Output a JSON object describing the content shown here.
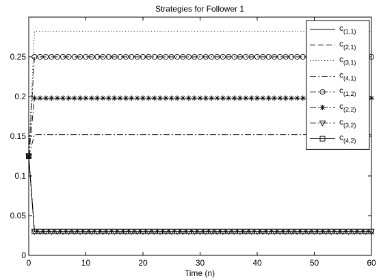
{
  "chart_data": {
    "type": "line",
    "title": "Strategies for Follower 1",
    "xlabel": "Time (n)",
    "ylabel": "",
    "xlim": [
      0,
      60
    ],
    "ylim": [
      0,
      0.3
    ],
    "xticks": [
      "0",
      "10",
      "20",
      "30",
      "40",
      "50",
      "60"
    ],
    "yticks": [
      "0",
      "0.05",
      "0.1",
      "0.15",
      "0.2",
      "0.25"
    ],
    "grid": false,
    "legend_position": "top-right",
    "series": [
      {
        "name": "c(1,1)",
        "base": "c",
        "sub": "(1,1)",
        "line": "solid",
        "marker": "none",
        "x": [
          0,
          1,
          60
        ],
        "y": [
          0.125,
          0.03,
          0.03
        ]
      },
      {
        "name": "c(2,1)",
        "base": "c",
        "sub": "(2,1)",
        "line": "dashed",
        "marker": "none",
        "x": [
          0,
          1,
          60
        ],
        "y": [
          0.125,
          0.03,
          0.03
        ]
      },
      {
        "name": "c(3,1)",
        "base": "c",
        "sub": "(3,1)",
        "line": "dotted",
        "marker": "none",
        "x": [
          0,
          1,
          60
        ],
        "y": [
          0.125,
          0.282,
          0.282
        ]
      },
      {
        "name": "c(4,1)",
        "base": "c",
        "sub": "(4,1)",
        "line": "dashdot",
        "marker": "none",
        "x": [
          0,
          1,
          60
        ],
        "y": [
          0.125,
          0.152,
          0.152
        ]
      },
      {
        "name": "c(1,2)",
        "base": "c",
        "sub": "(1,2)",
        "line": "dashdot",
        "marker": "circle",
        "x": [
          0,
          1,
          60
        ],
        "y": [
          0.125,
          0.25,
          0.25
        ]
      },
      {
        "name": "c(2,2)",
        "base": "c",
        "sub": "(2,2)",
        "line": "dashdot",
        "marker": "star",
        "x": [
          0,
          1,
          60
        ],
        "y": [
          0.125,
          0.198,
          0.198
        ]
      },
      {
        "name": "c(3,2)",
        "base": "c",
        "sub": "(3,2)",
        "line": "dashdot",
        "marker": "triangle-down",
        "x": [
          0,
          1,
          60
        ],
        "y": [
          0.125,
          0.03,
          0.03
        ]
      },
      {
        "name": "c(4,2)",
        "base": "c",
        "sub": "(4,2)",
        "line": "solid",
        "marker": "square",
        "x": [
          0,
          1,
          60
        ],
        "y": [
          0.125,
          0.03,
          0.03
        ]
      }
    ]
  }
}
